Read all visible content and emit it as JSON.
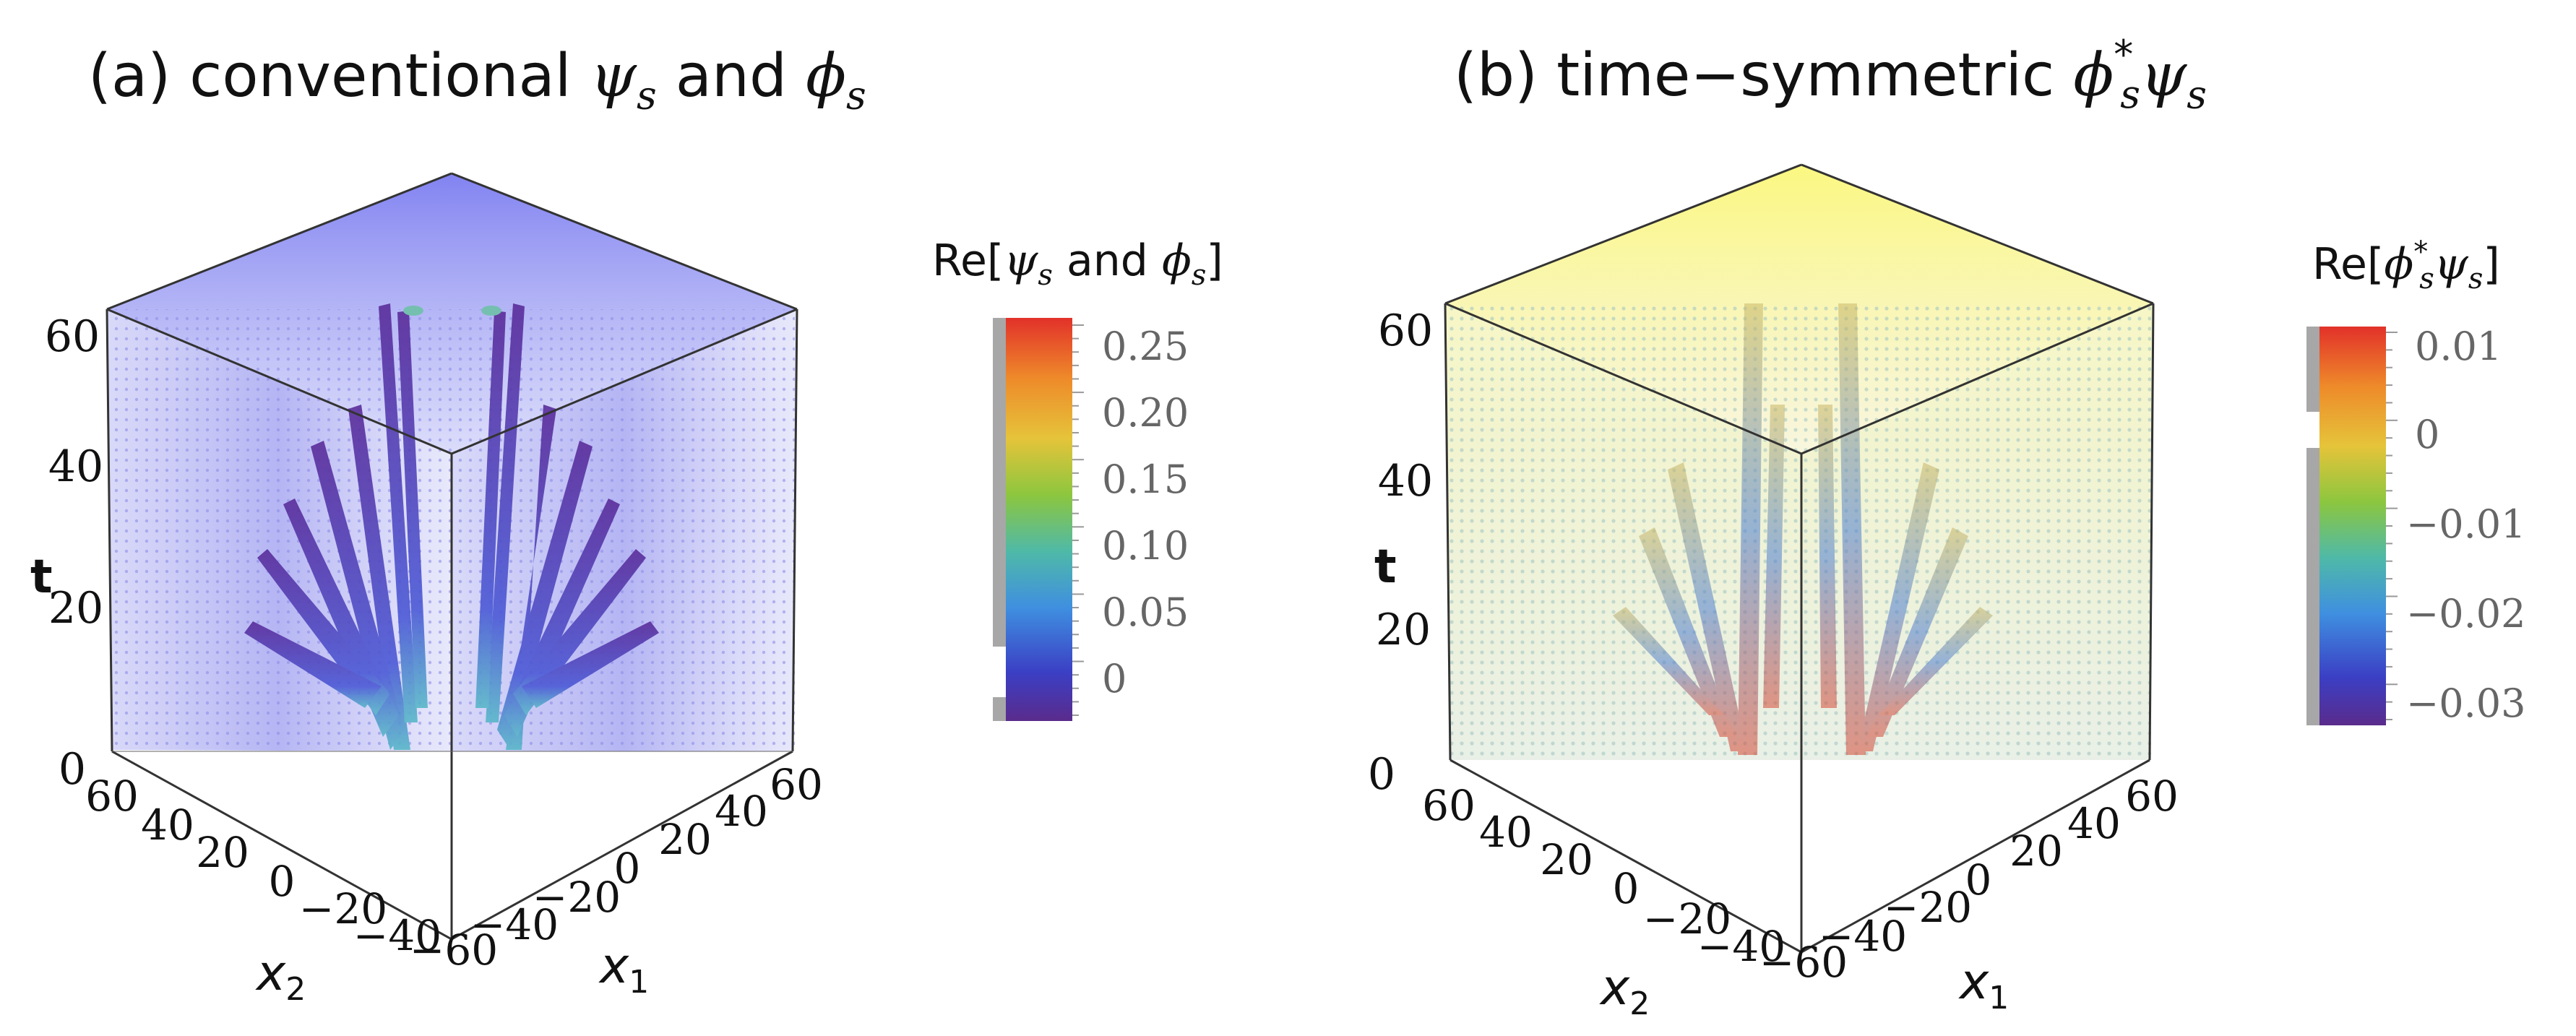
{
  "panels": [
    {
      "title_prefix": "(a) conventional",
      "title_sym1": "ψ",
      "title_sym1_sub": "s",
      "title_mid": "and",
      "title_sym2": "ϕ",
      "title_sym2_sub": "s",
      "colorbar": {
        "title_pre": "Re[",
        "sym1": "ψ",
        "sym1_sub": "s",
        "mid": "and",
        "sym2": "ϕ",
        "sym2_sub": "s",
        "title_post": "]",
        "ticks": [
          "0.25",
          "0.20",
          "0.15",
          "0.10",
          "0.05",
          "0"
        ]
      }
    },
    {
      "title_prefix": "(b) time−symmetric",
      "title_sym1": "ϕ",
      "title_sym1_sup": "*",
      "title_sym1_sub": "s",
      "title_sym2": "ψ",
      "title_sym2_sub": "s",
      "colorbar": {
        "title_pre": "Re[",
        "sym1": "ϕ",
        "sym1_sup": "*",
        "sym1_sub": "s",
        "sym2": "ψ",
        "sym2_sub": "s",
        "title_post": "]",
        "ticks": [
          "0.01",
          "0",
          "−0.01",
          "−0.02",
          "−0.03"
        ]
      }
    }
  ],
  "axes": {
    "t_label": "t",
    "x1_label": "x",
    "x1_sub": "1",
    "x2_label": "x",
    "x2_sub": "2",
    "t_ticks": [
      "0",
      "20",
      "40",
      "60"
    ],
    "x2_ticks": [
      "60",
      "40",
      "20",
      "0",
      "−20",
      "−40"
    ],
    "x1_ticks": [
      "−60",
      "−40",
      "−20",
      "0",
      "20",
      "40",
      "60"
    ]
  },
  "chart_data": [
    {
      "type": "heatmap",
      "subtype": "3d-volume",
      "x1_range": [
        -60,
        60
      ],
      "x2_range": [
        -60,
        60
      ],
      "t_range": [
        0,
        60
      ],
      "colorbar_range": [
        -0.02,
        0.27
      ],
      "colorbar_ticks": [
        0,
        0.05,
        0.1,
        0.15,
        0.2,
        0.25
      ],
      "colormap": "rainbow",
      "colors": {
        "low": "#5a2b8c",
        "high": "#e2312a"
      }
    },
    {
      "type": "heatmap",
      "subtype": "3d-volume",
      "x1_range": [
        -60,
        60
      ],
      "x2_range": [
        -60,
        60
      ],
      "t_range": [
        0,
        60
      ],
      "colorbar_range": [
        -0.034,
        0.012
      ],
      "colorbar_ticks": [
        0.01,
        0,
        -0.01,
        -0.02,
        -0.03
      ],
      "colormap": "rainbow",
      "colors": {
        "low": "#5a2b8c",
        "high": "#e2312a"
      }
    }
  ]
}
